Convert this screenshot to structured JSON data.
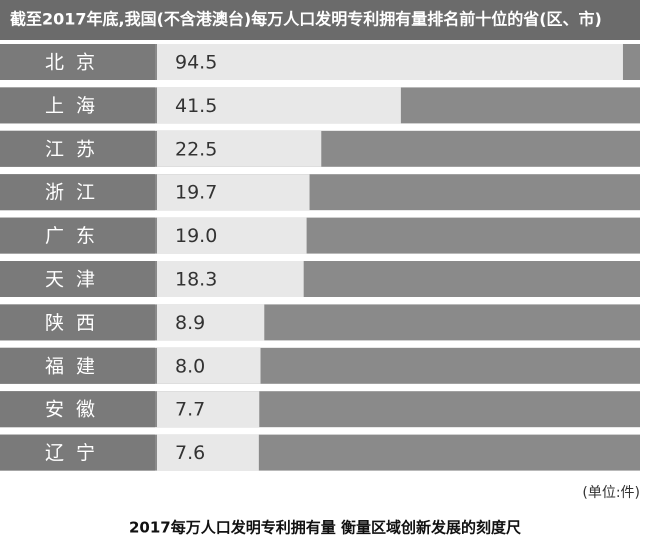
{
  "chart_data": {
    "type": "bar",
    "title": "截至2017年底,我国(不含港澳台)每万人口发明专利拥有量排名前十位的省(区、市)",
    "categories": [
      "北京",
      "上海",
      "江苏",
      "浙江",
      "广东",
      "天津",
      "陕西",
      "福建",
      "安徽",
      "辽宁"
    ],
    "values": [
      94.5,
      41.5,
      22.5,
      19.7,
      19.0,
      18.3,
      8.9,
      8.0,
      7.7,
      7.6
    ],
    "value_labels": [
      "94.5",
      "41.5",
      "22.5",
      "19.7",
      "19.0",
      "18.3",
      "8.9",
      "8.0",
      "7.7",
      "7.6"
    ],
    "color": "#e8e8e8",
    "unit_note": "(单位:件)",
    "caption": "2017每万人口发明专利拥有量 衡量区域创新发展的刻度尺"
  }
}
